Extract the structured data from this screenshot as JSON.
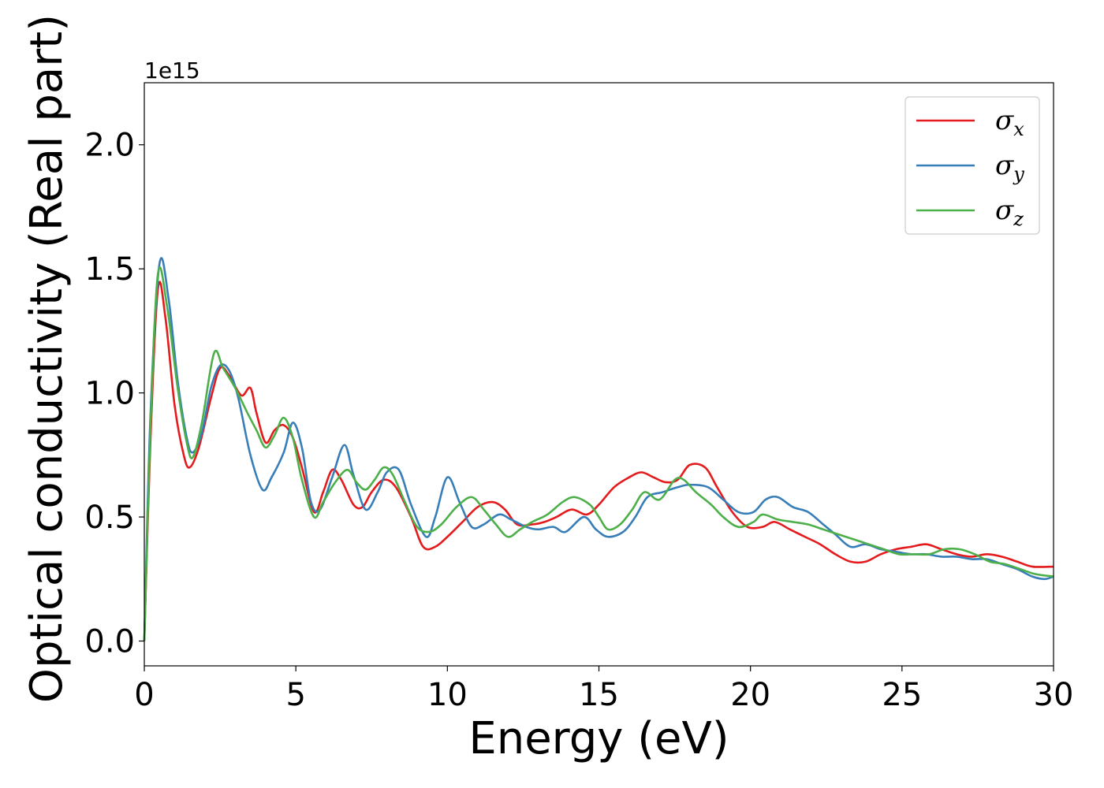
{
  "chart_data": {
    "type": "line",
    "title": "",
    "xlabel": "Energy (eV)",
    "ylabel": "Optical conductivity (Real part)",
    "y_offset_text": "1e15",
    "y_scale_factor": 1000000000000000.0,
    "xlim": [
      0,
      30
    ],
    "ylim": [
      -0.1,
      2.25
    ],
    "x_ticks": [
      0,
      5,
      10,
      15,
      20,
      25,
      30
    ],
    "x_tick_labels": [
      "0",
      "5",
      "10",
      "15",
      "20",
      "25",
      "30"
    ],
    "y_ticks": [
      0.0,
      0.5,
      1.0,
      1.5,
      2.0
    ],
    "y_tick_labels": [
      "0.0",
      "0.5",
      "1.0",
      "1.5",
      "2.0"
    ],
    "grid": false,
    "legend_position": "top-right",
    "series": [
      {
        "name": "σx",
        "legend_base": "σ",
        "legend_sub": "x",
        "color": "#e41a1c",
        "points": [
          [
            0,
            0
          ],
          [
            0.2,
            0.8
          ],
          [
            0.45,
            1.42
          ],
          [
            0.7,
            1.3
          ],
          [
            1.0,
            0.95
          ],
          [
            1.3,
            0.75
          ],
          [
            1.5,
            0.7
          ],
          [
            1.8,
            0.78
          ],
          [
            2.2,
            0.98
          ],
          [
            2.5,
            1.1
          ],
          [
            2.8,
            1.07
          ],
          [
            3.2,
            0.99
          ],
          [
            3.5,
            1.02
          ],
          [
            3.7,
            0.92
          ],
          [
            4.0,
            0.8
          ],
          [
            4.3,
            0.85
          ],
          [
            4.6,
            0.87
          ],
          [
            4.9,
            0.82
          ],
          [
            5.2,
            0.7
          ],
          [
            5.6,
            0.52
          ],
          [
            5.9,
            0.6
          ],
          [
            6.2,
            0.69
          ],
          [
            6.5,
            0.65
          ],
          [
            6.9,
            0.55
          ],
          [
            7.2,
            0.54
          ],
          [
            7.5,
            0.6
          ],
          [
            7.9,
            0.65
          ],
          [
            8.3,
            0.62
          ],
          [
            8.8,
            0.5
          ],
          [
            9.2,
            0.38
          ],
          [
            9.6,
            0.38
          ],
          [
            10.0,
            0.42
          ],
          [
            10.5,
            0.48
          ],
          [
            11.0,
            0.54
          ],
          [
            11.5,
            0.56
          ],
          [
            11.9,
            0.53
          ],
          [
            12.3,
            0.47
          ],
          [
            12.8,
            0.47
          ],
          [
            13.2,
            0.48
          ],
          [
            13.6,
            0.5
          ],
          [
            14.1,
            0.53
          ],
          [
            14.6,
            0.51
          ],
          [
            15.0,
            0.55
          ],
          [
            15.5,
            0.62
          ],
          [
            16.0,
            0.66
          ],
          [
            16.4,
            0.68
          ],
          [
            16.8,
            0.66
          ],
          [
            17.2,
            0.64
          ],
          [
            17.6,
            0.65
          ],
          [
            18.0,
            0.71
          ],
          [
            18.5,
            0.7
          ],
          [
            18.9,
            0.62
          ],
          [
            19.4,
            0.52
          ],
          [
            19.9,
            0.46
          ],
          [
            20.4,
            0.46
          ],
          [
            20.8,
            0.48
          ],
          [
            21.3,
            0.45
          ],
          [
            21.8,
            0.42
          ],
          [
            22.3,
            0.39
          ],
          [
            22.8,
            0.35
          ],
          [
            23.3,
            0.32
          ],
          [
            23.8,
            0.32
          ],
          [
            24.3,
            0.35
          ],
          [
            24.8,
            0.37
          ],
          [
            25.3,
            0.38
          ],
          [
            25.8,
            0.39
          ],
          [
            26.3,
            0.37
          ],
          [
            26.8,
            0.35
          ],
          [
            27.3,
            0.34
          ],
          [
            27.8,
            0.35
          ],
          [
            28.3,
            0.34
          ],
          [
            28.8,
            0.32
          ],
          [
            29.3,
            0.3
          ],
          [
            30.0,
            0.3
          ]
        ]
      },
      {
        "name": "σy",
        "legend_base": "σ",
        "legend_sub": "y",
        "color": "#377eb8",
        "points": [
          [
            0,
            0
          ],
          [
            0.2,
            0.9
          ],
          [
            0.5,
            1.52
          ],
          [
            0.8,
            1.38
          ],
          [
            1.1,
            1.05
          ],
          [
            1.4,
            0.82
          ],
          [
            1.6,
            0.76
          ],
          [
            1.9,
            0.84
          ],
          [
            2.2,
            1.02
          ],
          [
            2.5,
            1.11
          ],
          [
            2.8,
            1.09
          ],
          [
            3.1,
            0.98
          ],
          [
            3.5,
            0.75
          ],
          [
            3.9,
            0.61
          ],
          [
            4.2,
            0.66
          ],
          [
            4.6,
            0.76
          ],
          [
            4.9,
            0.88
          ],
          [
            5.2,
            0.78
          ],
          [
            5.5,
            0.56
          ],
          [
            5.8,
            0.53
          ],
          [
            6.2,
            0.66
          ],
          [
            6.6,
            0.79
          ],
          [
            6.9,
            0.67
          ],
          [
            7.3,
            0.53
          ],
          [
            7.7,
            0.6
          ],
          [
            8.0,
            0.68
          ],
          [
            8.4,
            0.69
          ],
          [
            8.8,
            0.55
          ],
          [
            9.3,
            0.42
          ],
          [
            9.6,
            0.5
          ],
          [
            10.0,
            0.66
          ],
          [
            10.4,
            0.56
          ],
          [
            10.8,
            0.46
          ],
          [
            11.2,
            0.47
          ],
          [
            11.7,
            0.51
          ],
          [
            12.1,
            0.49
          ],
          [
            12.6,
            0.46
          ],
          [
            13.0,
            0.45
          ],
          [
            13.5,
            0.46
          ],
          [
            13.9,
            0.44
          ],
          [
            14.5,
            0.5
          ],
          [
            14.9,
            0.45
          ],
          [
            15.3,
            0.42
          ],
          [
            15.8,
            0.44
          ],
          [
            16.2,
            0.5
          ],
          [
            16.6,
            0.58
          ],
          [
            17.1,
            0.6
          ],
          [
            17.6,
            0.62
          ],
          [
            18.0,
            0.63
          ],
          [
            18.6,
            0.62
          ],
          [
            19.1,
            0.57
          ],
          [
            19.6,
            0.52
          ],
          [
            20.1,
            0.52
          ],
          [
            20.5,
            0.57
          ],
          [
            20.9,
            0.58
          ],
          [
            21.4,
            0.54
          ],
          [
            21.9,
            0.52
          ],
          [
            22.4,
            0.47
          ],
          [
            22.8,
            0.43
          ],
          [
            23.3,
            0.38
          ],
          [
            23.8,
            0.39
          ],
          [
            24.3,
            0.37
          ],
          [
            24.8,
            0.36
          ],
          [
            25.3,
            0.35
          ],
          [
            25.8,
            0.35
          ],
          [
            26.3,
            0.34
          ],
          [
            26.8,
            0.34
          ],
          [
            27.3,
            0.33
          ],
          [
            27.8,
            0.33
          ],
          [
            28.3,
            0.31
          ],
          [
            28.8,
            0.29
          ],
          [
            29.3,
            0.26
          ],
          [
            29.7,
            0.25
          ],
          [
            30.0,
            0.26
          ]
        ]
      },
      {
        "name": "σz",
        "legend_base": "σ",
        "legend_sub": "z",
        "color": "#4daf4a",
        "points": [
          [
            0,
            0
          ],
          [
            0.2,
            0.85
          ],
          [
            0.45,
            1.48
          ],
          [
            0.75,
            1.35
          ],
          [
            1.1,
            1.02
          ],
          [
            1.4,
            0.8
          ],
          [
            1.6,
            0.74
          ],
          [
            1.9,
            0.88
          ],
          [
            2.3,
            1.16
          ],
          [
            2.6,
            1.1
          ],
          [
            3.0,
            1.02
          ],
          [
            3.4,
            0.92
          ],
          [
            3.7,
            0.85
          ],
          [
            4.0,
            0.78
          ],
          [
            4.3,
            0.83
          ],
          [
            4.6,
            0.9
          ],
          [
            4.9,
            0.82
          ],
          [
            5.2,
            0.65
          ],
          [
            5.6,
            0.5
          ],
          [
            5.9,
            0.56
          ],
          [
            6.3,
            0.64
          ],
          [
            6.7,
            0.69
          ],
          [
            7.0,
            0.64
          ],
          [
            7.3,
            0.61
          ],
          [
            7.6,
            0.65
          ],
          [
            7.9,
            0.7
          ],
          [
            8.2,
            0.67
          ],
          [
            8.6,
            0.56
          ],
          [
            9.0,
            0.46
          ],
          [
            9.4,
            0.44
          ],
          [
            9.8,
            0.47
          ],
          [
            10.3,
            0.54
          ],
          [
            10.8,
            0.58
          ],
          [
            11.2,
            0.53
          ],
          [
            11.6,
            0.47
          ],
          [
            12.0,
            0.42
          ],
          [
            12.4,
            0.45
          ],
          [
            12.8,
            0.48
          ],
          [
            13.3,
            0.51
          ],
          [
            13.8,
            0.56
          ],
          [
            14.2,
            0.58
          ],
          [
            14.7,
            0.55
          ],
          [
            15.0,
            0.5
          ],
          [
            15.3,
            0.45
          ],
          [
            15.7,
            0.47
          ],
          [
            16.1,
            0.53
          ],
          [
            16.5,
            0.6
          ],
          [
            17.0,
            0.57
          ],
          [
            17.5,
            0.65
          ],
          [
            17.8,
            0.65
          ],
          [
            18.2,
            0.6
          ],
          [
            18.7,
            0.55
          ],
          [
            19.1,
            0.5
          ],
          [
            19.6,
            0.46
          ],
          [
            20.1,
            0.48
          ],
          [
            20.4,
            0.51
          ],
          [
            20.9,
            0.49
          ],
          [
            21.4,
            0.48
          ],
          [
            21.9,
            0.47
          ],
          [
            22.4,
            0.45
          ],
          [
            22.9,
            0.43
          ],
          [
            23.4,
            0.41
          ],
          [
            23.9,
            0.39
          ],
          [
            24.4,
            0.37
          ],
          [
            24.9,
            0.35
          ],
          [
            25.4,
            0.35
          ],
          [
            25.9,
            0.35
          ],
          [
            26.4,
            0.37
          ],
          [
            26.9,
            0.37
          ],
          [
            27.4,
            0.35
          ],
          [
            27.9,
            0.32
          ],
          [
            28.4,
            0.31
          ],
          [
            28.9,
            0.29
          ],
          [
            29.4,
            0.27
          ],
          [
            30.0,
            0.26
          ]
        ]
      }
    ]
  }
}
